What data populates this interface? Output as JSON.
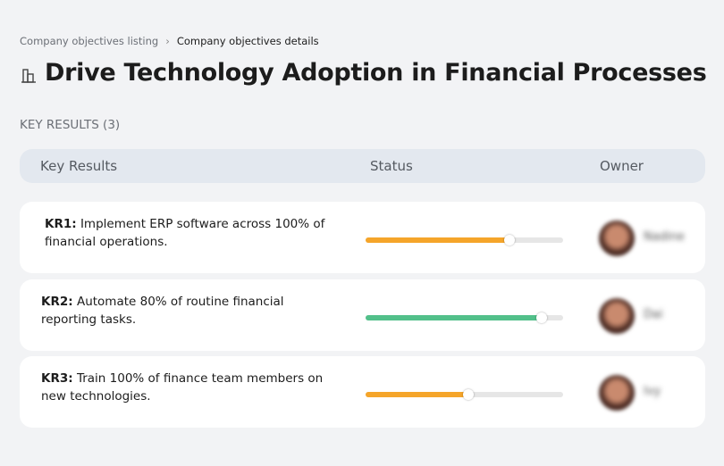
{
  "breadcrumb": [
    "Company objectives listing",
    "Company objectives details"
  ],
  "title": "Drive Technology Adoption in Financial Processes",
  "section_title": "KEY RESULTS (3)",
  "columns": [
    "Key Results",
    "Status",
    "Owner"
  ],
  "key_results": [
    {
      "id": "KR1:",
      "text": "Implement ERP software across 100% of financial operations.",
      "progress": 73,
      "color": "#f5a52a",
      "owner": "Nadine"
    },
    {
      "id": "KR2:",
      "text": "Automate 80% of routine financial reporting tasks.",
      "progress": 89,
      "color": "#52c08a",
      "owner": "Dai"
    },
    {
      "id": "KR3:",
      "text": "Train 100% of finance team members on new technologies.",
      "progress": 52,
      "color": "#f5a52a",
      "owner": "Ivy"
    }
  ]
}
